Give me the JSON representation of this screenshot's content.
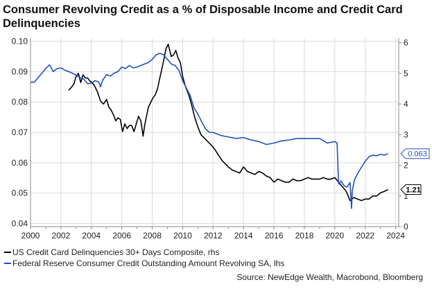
{
  "title": "Consumer Revolving Credit as a % of Disposable Income and Credit Card Delinquencies",
  "source": "Source: NewEdge Wealth, Macrobond, Bloomberg",
  "colors": {
    "black_series": "#000000",
    "blue_series": "#1f4fc1",
    "grid": "#d9d9d9",
    "axis": "#888888"
  },
  "chart_data": {
    "type": "line",
    "title": "Consumer Revolving Credit as a % of Disposable Income and Credit Card Delinquencies",
    "x_ticks": [
      "2000",
      "2002",
      "2004",
      "2006",
      "2008",
      "2010",
      "2012",
      "2014",
      "2016",
      "2018",
      "2020",
      "2022",
      "2024"
    ],
    "xlim": [
      2000,
      2024.2
    ],
    "y_left": {
      "ticks": [
        "0.04",
        "0.05",
        "0.06",
        "0.07",
        "0.08",
        "0.09",
        "0.10"
      ],
      "lim": [
        0.039,
        0.101
      ]
    },
    "y_right": {
      "ticks": [
        "0",
        "1",
        "2",
        "3",
        "4",
        "5",
        "6"
      ],
      "lim": [
        0,
        6.15
      ]
    },
    "grid": true,
    "legend_position": "bottom-left",
    "series": [
      {
        "name": "US Credit Card Delinquencies 30+ Days Composite, rhs",
        "axis": "right",
        "color": "#000000",
        "end_label": "1.21",
        "x": [
          2002.5,
          2002.7,
          2002.85,
          2003.0,
          2003.15,
          2003.3,
          2003.45,
          2003.6,
          2003.75,
          2003.9,
          2004.05,
          2004.2,
          2004.4,
          2004.6,
          2004.8,
          2005.0,
          2005.15,
          2005.3,
          2005.45,
          2005.6,
          2005.75,
          2005.9,
          2006.05,
          2006.2,
          2006.35,
          2006.5,
          2006.65,
          2006.8,
          2006.95,
          2007.1,
          2007.25,
          2007.4,
          2007.5,
          2007.6,
          2007.75,
          2007.9,
          2008.05,
          2008.2,
          2008.35,
          2008.5,
          2008.7,
          2008.9,
          2009.05,
          2009.15,
          2009.25,
          2009.4,
          2009.55,
          2009.7,
          2009.85,
          2010.0,
          2010.2,
          2010.4,
          2010.6,
          2010.8,
          2011.0,
          2011.2,
          2011.4,
          2011.6,
          2011.8,
          2012.0,
          2012.2,
          2012.4,
          2012.6,
          2012.8,
          2013.0,
          2013.25,
          2013.5,
          2013.75,
          2014.0,
          2014.25,
          2014.5,
          2014.75,
          2015.0,
          2015.25,
          2015.5,
          2015.75,
          2016.0,
          2016.25,
          2016.5,
          2016.75,
          2017.0,
          2017.25,
          2017.5,
          2017.75,
          2018.0,
          2018.25,
          2018.5,
          2018.75,
          2019.0,
          2019.25,
          2019.5,
          2019.75,
          2020.0,
          2020.25,
          2020.5,
          2020.75,
          2021.0,
          2021.25,
          2021.5,
          2021.75,
          2022.0,
          2022.25,
          2022.5,
          2022.75,
          2023.0,
          2023.25,
          2023.5
        ],
        "values": [
          4.45,
          4.55,
          4.65,
          4.9,
          5.0,
          4.7,
          4.95,
          4.85,
          4.85,
          4.75,
          4.7,
          4.6,
          4.4,
          4.1,
          4.0,
          4.15,
          3.9,
          3.8,
          3.65,
          3.45,
          3.55,
          3.5,
          3.1,
          3.35,
          3.2,
          3.3,
          3.3,
          3.1,
          3.35,
          3.6,
          3.45,
          2.95,
          3.3,
          3.55,
          3.9,
          4.05,
          4.2,
          4.3,
          4.5,
          4.85,
          5.3,
          5.8,
          5.95,
          5.75,
          5.55,
          5.6,
          5.75,
          5.5,
          5.35,
          4.9,
          4.55,
          4.3,
          3.95,
          3.55,
          3.25,
          3.0,
          2.9,
          2.8,
          2.7,
          2.6,
          2.45,
          2.3,
          2.15,
          2.05,
          1.95,
          1.85,
          1.8,
          1.75,
          1.95,
          1.8,
          1.75,
          1.7,
          1.8,
          1.75,
          1.65,
          1.6,
          1.45,
          1.55,
          1.5,
          1.45,
          1.45,
          1.55,
          1.5,
          1.5,
          1.55,
          1.6,
          1.55,
          1.55,
          1.55,
          1.6,
          1.55,
          1.55,
          1.6,
          1.45,
          1.3,
          1.15,
          0.85,
          0.95,
          0.9,
          0.85,
          0.9,
          0.9,
          1.0,
          1.0,
          1.1,
          1.15,
          1.21
        ]
      },
      {
        "name": "Federal Reserve Consumer Credit Outstanding Amount Revolving SA, lhs",
        "axis": "left",
        "color": "#1f4fc1",
        "end_label": "0.063",
        "x": [
          2000.0,
          2000.25,
          2000.5,
          2000.75,
          2001.0,
          2001.25,
          2001.5,
          2001.75,
          2002.0,
          2002.25,
          2002.5,
          2002.75,
          2003.0,
          2003.25,
          2003.5,
          2003.75,
          2004.0,
          2004.25,
          2004.5,
          2004.6,
          2004.75,
          2005.0,
          2005.25,
          2005.5,
          2005.75,
          2006.0,
          2006.25,
          2006.5,
          2006.75,
          2007.0,
          2007.25,
          2007.5,
          2007.75,
          2008.0,
          2008.25,
          2008.5,
          2008.75,
          2009.0,
          2009.25,
          2009.5,
          2009.75,
          2010.0,
          2010.25,
          2010.5,
          2010.75,
          2011.0,
          2011.25,
          2011.5,
          2011.75,
          2012.0,
          2012.5,
          2013.0,
          2013.5,
          2014.0,
          2014.5,
          2015.0,
          2015.5,
          2016.0,
          2016.5,
          2017.0,
          2017.5,
          2018.0,
          2018.5,
          2019.0,
          2019.5,
          2020.0,
          2020.15,
          2020.25,
          2020.4,
          2020.6,
          2020.8,
          2021.0,
          2021.1,
          2021.15,
          2021.3,
          2021.5,
          2021.75,
          2022.0,
          2022.25,
          2022.5,
          2022.75,
          2023.0,
          2023.25,
          2023.5
        ],
        "values": [
          0.0865,
          0.0865,
          0.088,
          0.0895,
          0.091,
          0.0922,
          0.09,
          0.091,
          0.0912,
          0.0905,
          0.09,
          0.0895,
          0.0888,
          0.088,
          0.0875,
          0.086,
          0.0862,
          0.087,
          0.0865,
          0.085,
          0.0872,
          0.089,
          0.0885,
          0.0895,
          0.09,
          0.0915,
          0.091,
          0.092,
          0.0912,
          0.0915,
          0.092,
          0.0925,
          0.093,
          0.094,
          0.0955,
          0.096,
          0.0955,
          0.094,
          0.0925,
          0.092,
          0.0905,
          0.087,
          0.0845,
          0.082,
          0.078,
          0.076,
          0.0735,
          0.0712,
          0.07,
          0.07,
          0.069,
          0.0685,
          0.068,
          0.0683,
          0.0675,
          0.067,
          0.066,
          0.0665,
          0.0672,
          0.0675,
          0.068,
          0.068,
          0.068,
          0.068,
          0.0665,
          0.067,
          0.0665,
          0.053,
          0.054,
          0.0525,
          0.052,
          0.0535,
          0.045,
          0.051,
          0.0545,
          0.0565,
          0.0585,
          0.0605,
          0.062,
          0.0625,
          0.0623,
          0.0628,
          0.0625,
          0.063
        ]
      }
    ]
  },
  "legend": [
    "US Credit Card Delinquencies 30+ Days Composite, rhs",
    "Federal Reserve Consumer Credit Outstanding Amount Revolving SA, lhs"
  ]
}
